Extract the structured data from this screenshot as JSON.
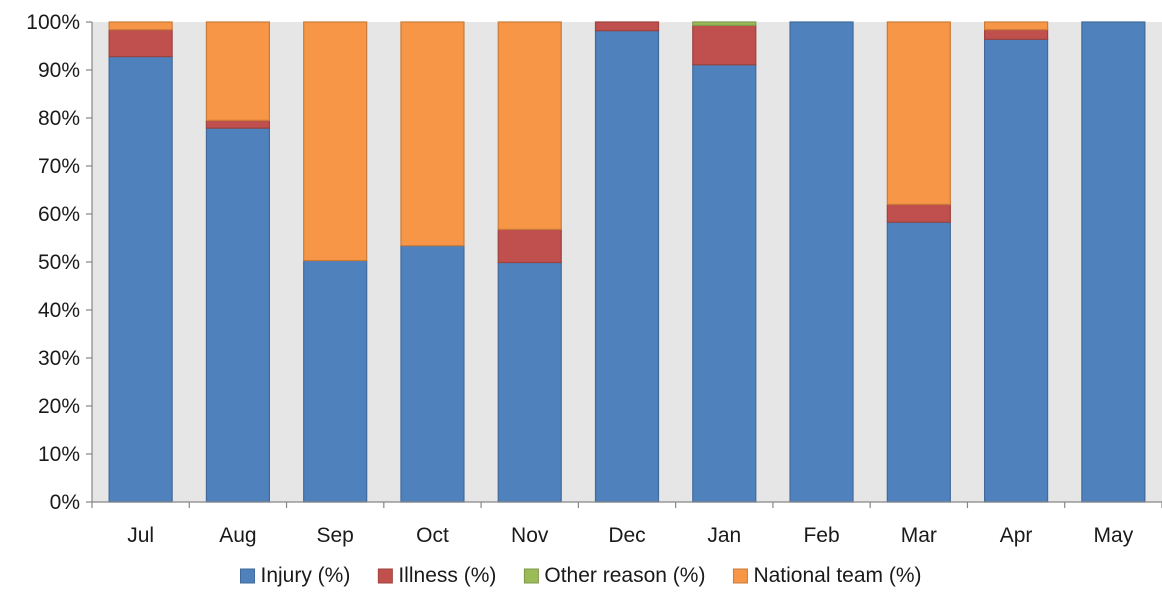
{
  "chart_data": {
    "type": "bar",
    "stacked": true,
    "categories": [
      "Jul",
      "Aug",
      "Sep",
      "Oct",
      "Nov",
      "Dec",
      "Jan",
      "Feb",
      "Mar",
      "Apr",
      "May"
    ],
    "series": [
      {
        "name": "Injury (%)",
        "color": "#4f81bd",
        "values": [
          92.8,
          77.9,
          50.3,
          53.4,
          49.9,
          98.2,
          91.1,
          100,
          58.3,
          96.4,
          100
        ]
      },
      {
        "name": "Illness (%)",
        "color": "#c0504d",
        "values": [
          5.6,
          1.6,
          0,
          0,
          6.9,
          1.8,
          8.2,
          0,
          3.7,
          2.0,
          0
        ]
      },
      {
        "name": "Other reason (%)",
        "color": "#9bbb59",
        "values": [
          0,
          0,
          0,
          0,
          0,
          0,
          0.7,
          0,
          0,
          0,
          0
        ]
      },
      {
        "name": "National team (%)",
        "color": "#f79646",
        "values": [
          1.6,
          20.5,
          49.7,
          46.6,
          43.2,
          0,
          0,
          0,
          38.0,
          1.6,
          0
        ]
      }
    ],
    "y_ticks": [
      "0%",
      "10%",
      "20%",
      "30%",
      "40%",
      "50%",
      "60%",
      "70%",
      "80%",
      "90%",
      "100%"
    ],
    "ylim": [
      0,
      100
    ],
    "title": "",
    "xlabel": "",
    "ylabel": "",
    "legend_position": "bottom",
    "plot_background": "#e6e6e6",
    "grid": false
  }
}
